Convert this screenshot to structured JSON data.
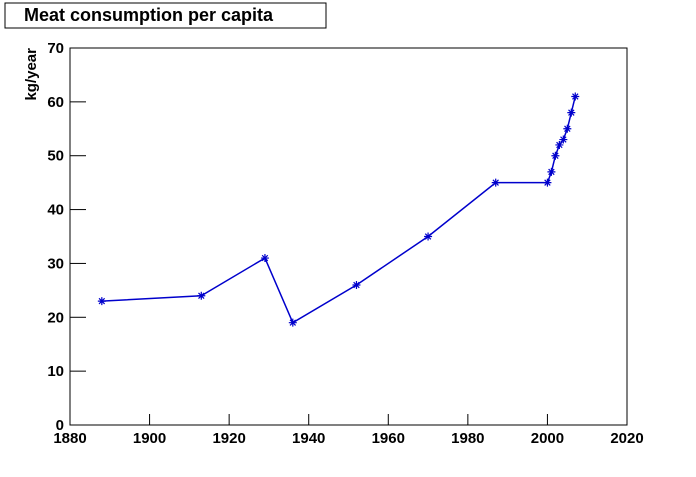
{
  "chart_data": {
    "type": "line",
    "title": "Meat consumption per capita",
    "y_label": "kg/year",
    "x": [
      1888,
      1913,
      1929,
      1936,
      1952,
      1970,
      1987,
      2000,
      2001,
      2002,
      2003,
      2004,
      2005,
      2006,
      2007
    ],
    "series": [
      {
        "color": "#0000cc",
        "values": [
          23,
          24,
          31,
          19,
          26,
          35,
          45,
          45,
          47,
          50,
          52,
          53,
          55,
          58,
          61
        ]
      }
    ],
    "xlim": [
      1880,
      2020
    ],
    "xticks": [
      1880,
      1900,
      1920,
      1940,
      1960,
      1980,
      2000,
      2020
    ],
    "ylim": [
      0,
      70
    ],
    "yticks": [
      0,
      10,
      20,
      30,
      40,
      50,
      60,
      70
    ]
  }
}
